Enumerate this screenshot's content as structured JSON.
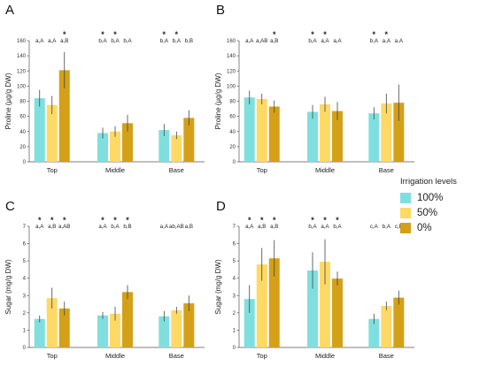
{
  "legend": {
    "title": "Irrigation levels",
    "items": [
      {
        "label": "100%",
        "color": "#7fdfdf"
      },
      {
        "label": "50%",
        "color": "#ffd966"
      },
      {
        "label": "0%",
        "color": "#d4a017"
      }
    ]
  },
  "chart_data": [
    {
      "type": "bar",
      "panel": "A",
      "ylabel": "Proline (μg/g DW)",
      "ylim": [
        0,
        160
      ],
      "yticks": [
        0,
        20,
        40,
        60,
        80,
        100,
        120,
        140,
        160
      ],
      "categories": [
        "Top",
        "Middle",
        "Base"
      ],
      "series": [
        {
          "name": "100%",
          "values": [
            84,
            38,
            42
          ],
          "errors": [
            11,
            7,
            8
          ]
        },
        {
          "name": "50%",
          "values": [
            75,
            40,
            35
          ],
          "errors": [
            12,
            7,
            5
          ]
        },
        {
          "name": "0%",
          "values": [
            121,
            51,
            58
          ],
          "errors": [
            24,
            11,
            10
          ]
        }
      ],
      "letters": [
        [
          "a,A",
          "a,A",
          "a,B"
        ],
        [
          "b,A",
          "b,A",
          "b,A"
        ],
        [
          "b,A",
          "b,A",
          "b,B"
        ]
      ],
      "stars": [
        [
          false,
          false,
          true
        ],
        [
          true,
          true,
          false
        ],
        [
          true,
          true,
          false
        ]
      ]
    },
    {
      "type": "bar",
      "panel": "B",
      "ylabel": "Proline (μg/g DW)",
      "ylim": [
        0,
        160
      ],
      "yticks": [
        0,
        20,
        40,
        60,
        80,
        100,
        120,
        140,
        160
      ],
      "categories": [
        "Top",
        "Middle",
        "Base"
      ],
      "series": [
        {
          "name": "100%",
          "values": [
            85,
            66,
            64
          ],
          "errors": [
            9,
            9,
            8
          ]
        },
        {
          "name": "50%",
          "values": [
            83,
            76,
            77
          ],
          "errors": [
            7,
            10,
            13
          ]
        },
        {
          "name": "0%",
          "values": [
            73,
            67,
            78
          ],
          "errors": [
            8,
            12,
            24
          ]
        }
      ],
      "letters": [
        [
          "a,A",
          "a,AB",
          "a,B"
        ],
        [
          "b,A",
          "a,A",
          "a,A"
        ],
        [
          "b,A",
          "a,A",
          "a,A"
        ]
      ],
      "stars": [
        [
          false,
          false,
          true
        ],
        [
          true,
          true,
          false
        ],
        [
          true,
          true,
          false
        ]
      ]
    },
    {
      "type": "bar",
      "panel": "C",
      "ylabel": "Sugar (mg/g DW)",
      "ylim": [
        0,
        7
      ],
      "yticks": [
        0,
        1,
        2,
        3,
        4,
        5,
        6,
        7
      ],
      "categories": [
        "Top",
        "Middle",
        "Base"
      ],
      "series": [
        {
          "name": "100%",
          "values": [
            1.65,
            1.85,
            1.8
          ],
          "errors": [
            0.2,
            0.2,
            0.3
          ]
        },
        {
          "name": "50%",
          "values": [
            2.85,
            1.95,
            2.15
          ],
          "errors": [
            0.6,
            0.4,
            0.2
          ]
        },
        {
          "name": "0%",
          "values": [
            2.25,
            3.2,
            2.55
          ],
          "errors": [
            0.4,
            0.4,
            0.45
          ]
        }
      ],
      "letters": [
        [
          "a,A",
          "a,B",
          "a,AB"
        ],
        [
          "a,A",
          "b,A",
          "b,B"
        ],
        [
          "a,A",
          "ab,AB",
          "a,B"
        ]
      ],
      "stars": [
        [
          true,
          true,
          true
        ],
        [
          true,
          true,
          true
        ],
        [
          false,
          false,
          false
        ]
      ]
    },
    {
      "type": "bar",
      "panel": "D",
      "ylabel": "Sugar (mg/g DW)",
      "ylim": [
        0,
        7
      ],
      "yticks": [
        0,
        1,
        2,
        3,
        4,
        5,
        6,
        7
      ],
      "categories": [
        "Top",
        "Middle",
        "Base"
      ],
      "series": [
        {
          "name": "100%",
          "values": [
            2.8,
            4.45,
            1.65
          ],
          "errors": [
            0.8,
            1.05,
            0.3
          ]
        },
        {
          "name": "50%",
          "values": [
            4.8,
            4.95,
            2.4
          ],
          "errors": [
            0.95,
            1.3,
            0.25
          ]
        },
        {
          "name": "0%",
          "values": [
            5.15,
            3.98,
            2.88
          ],
          "errors": [
            1.05,
            0.4,
            0.4
          ]
        }
      ],
      "letters": [
        [
          "a,A",
          "a,B",
          "a,B"
        ],
        [
          "b,A",
          "a,A",
          "b,A"
        ],
        [
          "c,A",
          "b,A",
          "c,B"
        ]
      ],
      "stars": [
        [
          true,
          true,
          true
        ],
        [
          true,
          true,
          true
        ],
        [
          false,
          false,
          false
        ]
      ]
    }
  ]
}
